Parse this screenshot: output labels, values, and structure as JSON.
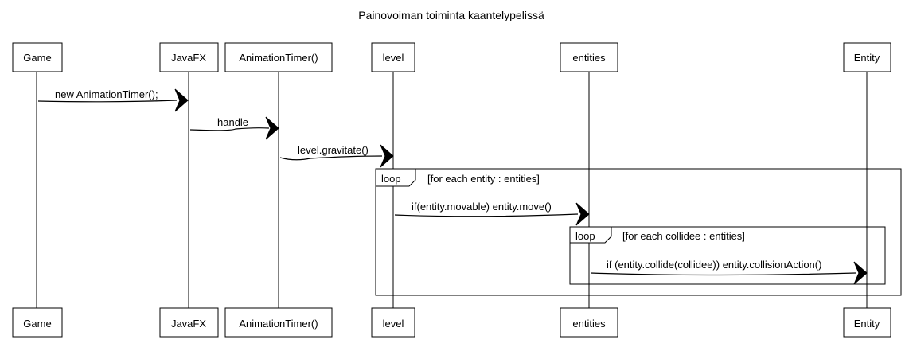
{
  "title": "Painovoiman toiminta kaantelypelissä",
  "participants": [
    {
      "id": "game",
      "label": "Game"
    },
    {
      "id": "javafx",
      "label": "JavaFX"
    },
    {
      "id": "timer",
      "label": "AnimationTimer()"
    },
    {
      "id": "level",
      "label": "level"
    },
    {
      "id": "entities",
      "label": "entities"
    },
    {
      "id": "entity",
      "label": "Entity"
    }
  ],
  "messages": [
    {
      "label": "new AnimationTimer();"
    },
    {
      "label": "handle"
    },
    {
      "label": "level.gravitate()"
    },
    {
      "label": "if(entity.movable) entity.move()"
    },
    {
      "label": "if (entity.collide(collidee)) entity.collisionAction()"
    }
  ],
  "loops": [
    {
      "keyword": "loop",
      "condition": "[for each entity : entities]"
    },
    {
      "keyword": "loop",
      "condition": "[for each collidee : entities]"
    }
  ]
}
